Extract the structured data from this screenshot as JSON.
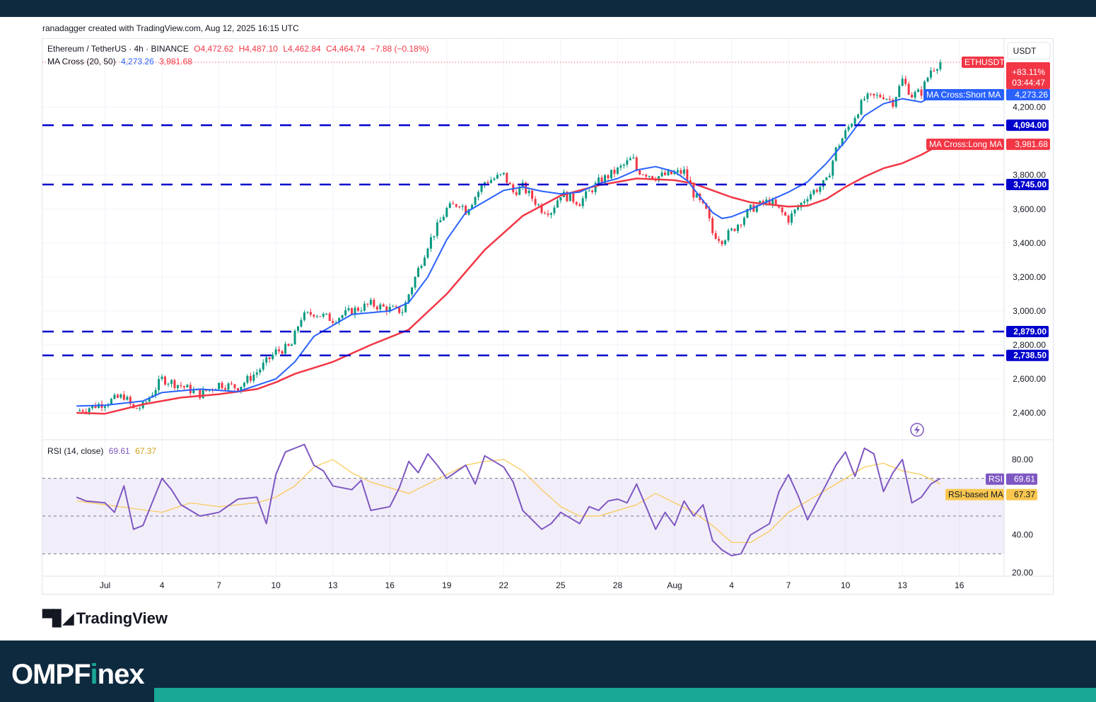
{
  "header": {
    "credit": "ranadagger created with TradingView.com, Aug 12, 2025 16:15 UTC"
  },
  "legend": {
    "symbol": "Ethereum / TetherUS · 4h · BINANCE",
    "open": "O4,472.62",
    "high": "H4,487.10",
    "low": "L4,462.84",
    "close": "C4,464.74",
    "change": "−7.88 (−0.18%)",
    "ma_title": "MA Cross (20, 50)",
    "ma_short_val": "4,273.26",
    "ma_long_val": "3,981.68",
    "rsi_title": "RSI (14, close)",
    "rsi_val": "69.61",
    "rsi_ma_val": "67.37"
  },
  "axis": {
    "currency": "USDT"
  },
  "labels": {
    "ethusdt": "ETHUSDT",
    "pct": "+83.11%",
    "countdown": "03:44:47",
    "short_ma_name": "MA Cross:Short MA",
    "short_ma_val": "4,273.26",
    "long_ma_name": "MA Cross:Long MA",
    "long_ma_val": "3,981.68",
    "rsi_name": "RSI",
    "rsi_val": "69.61",
    "rsi_ma_name": "RSI-based MA",
    "rsi_ma_val": "67.37"
  },
  "branding": {
    "tradingview": "TradingView",
    "omp_a": "OMPF",
    "omp_b": "i",
    "omp_c": "nex"
  },
  "chart_data": {
    "type": "line",
    "title": "Ethereum / TetherUS · 4h · BINANCE",
    "price_axis": {
      "ticks": [
        "4,200.00",
        "3,800.00",
        "3,600.00",
        "3,400.00",
        "3,200.00",
        "3,000.00",
        "2,800.00",
        "2,600.00",
        "2,400.00"
      ],
      "ylim": [
        2330,
        4560
      ]
    },
    "x_ticks": [
      "Jul",
      "4",
      "7",
      "10",
      "13",
      "16",
      "19",
      "22",
      "25",
      "28",
      "Aug",
      "4",
      "7",
      "10",
      "13",
      "16"
    ],
    "levels": [
      {
        "value": 4094.0,
        "label": "4,094.00"
      },
      {
        "value": 3745.0,
        "label": "3,745.00"
      },
      {
        "value": 2879.0,
        "label": "2,879.00"
      },
      {
        "value": 2738.5,
        "label": "2,738.50"
      }
    ],
    "colors": {
      "short_ma": "#2962ff",
      "long_ma": "#f23645",
      "level": "#0000cc",
      "rsi": "#7e57c2",
      "rsi_ma": "#f9c74f",
      "candle_up": "#089981",
      "candle_down": "#f23645"
    },
    "price_series": {
      "days": [
        -1.5,
        0,
        1,
        1.5,
        2,
        3,
        3.5,
        4,
        5,
        6,
        7,
        8,
        9,
        9.8,
        10.3,
        11,
        12,
        13,
        14,
        15,
        15.7,
        16,
        17,
        18,
        18.7,
        19,
        20,
        21,
        21.5,
        22,
        23,
        23.5,
        24,
        25,
        26,
        27,
        27.8,
        28,
        29,
        30,
        30.5,
        31,
        31.7,
        32,
        32.5,
        33,
        34,
        35,
        36,
        37,
        38,
        38.5,
        39,
        40,
        41,
        41.5,
        42,
        42.5,
        43,
        43.5,
        44
      ],
      "close": [
        2410,
        2460,
        2500,
        2420,
        2440,
        2600,
        2580,
        2560,
        2510,
        2570,
        2550,
        2640,
        2760,
        2790,
        2960,
        2990,
        2950,
        3000,
        3040,
        3010,
        3000,
        3100,
        3390,
        3600,
        3640,
        3590,
        3760,
        3800,
        3700,
        3730,
        3600,
        3590,
        3690,
        3640,
        3760,
        3830,
        3900,
        3830,
        3790,
        3810,
        3820,
        3690,
        3580,
        3460,
        3420,
        3470,
        3600,
        3650,
        3540,
        3680,
        3760,
        3950,
        4050,
        4250,
        4270,
        4230,
        4360,
        4270,
        4290,
        4420,
        4465
      ]
    },
    "short_ma": {
      "days": [
        -1.5,
        0,
        2,
        3,
        5,
        7,
        9,
        10,
        11,
        13,
        15,
        16,
        17,
        18,
        19,
        21,
        22,
        23,
        24,
        25,
        26,
        27,
        28,
        29,
        30,
        30.7,
        31,
        32,
        32.5,
        33,
        34,
        35,
        36,
        37,
        38,
        39,
        40,
        41,
        42,
        43,
        44
      ],
      "values": [
        2440,
        2445,
        2470,
        2520,
        2540,
        2525,
        2600,
        2700,
        2850,
        2980,
        3000,
        3050,
        3200,
        3420,
        3580,
        3710,
        3730,
        3705,
        3690,
        3700,
        3750,
        3780,
        3830,
        3850,
        3820,
        3765,
        3720,
        3580,
        3545,
        3555,
        3600,
        3650,
        3700,
        3760,
        3870,
        4000,
        4150,
        4220,
        4250,
        4230,
        4290
      ]
    },
    "long_ma": {
      "days": [
        -1.5,
        0,
        2,
        4,
        6,
        8,
        9,
        10,
        12,
        14,
        16,
        18,
        20,
        22,
        24,
        26,
        28,
        30,
        31,
        32,
        33,
        34,
        36,
        37,
        38,
        39,
        40,
        41,
        42,
        43,
        44
      ],
      "values": [
        2400,
        2395,
        2450,
        2490,
        2510,
        2540,
        2580,
        2630,
        2700,
        2800,
        2890,
        3100,
        3360,
        3560,
        3680,
        3740,
        3780,
        3770,
        3750,
        3710,
        3670,
        3640,
        3615,
        3620,
        3660,
        3730,
        3790,
        3840,
        3870,
        3920,
        3980
      ]
    },
    "rsi_axis": {
      "ticks": [
        "80.00",
        "40.00",
        "20.00"
      ],
      "ylim": [
        17,
        93
      ],
      "bands": [
        70,
        50,
        30
      ]
    },
    "rsi": {
      "days": [
        -1.5,
        -1,
        0,
        0.5,
        1,
        1.5,
        2,
        3,
        3.5,
        4,
        5,
        6,
        7,
        8,
        8.5,
        9,
        9.5,
        10,
        10.5,
        11,
        11.5,
        12,
        13,
        13.5,
        14,
        15,
        15.5,
        16,
        16.5,
        17,
        17.5,
        18,
        19,
        19.5,
        20,
        21,
        21.5,
        22,
        23,
        23.5,
        24,
        25,
        25.5,
        26,
        26.5,
        27,
        27.5,
        28,
        29,
        29.5,
        30,
        30.5,
        31,
        31.5,
        32,
        32.5,
        33,
        33.5,
        34,
        34.5,
        35,
        35.5,
        36,
        36.5,
        37,
        38,
        38.5,
        39,
        39.5,
        40,
        40.5,
        41,
        41.5,
        42,
        42.5,
        43,
        43.5,
        44
      ],
      "values": [
        60,
        58,
        57,
        52,
        66,
        43,
        45,
        70,
        64,
        56,
        50,
        52,
        59,
        60,
        46,
        72,
        84,
        86,
        88,
        77,
        74,
        66,
        64,
        69,
        53,
        55,
        65,
        79,
        73,
        83,
        77,
        70,
        77,
        67,
        82,
        76,
        68,
        53,
        43,
        46,
        52,
        46,
        55,
        53,
        58,
        59,
        57,
        67,
        43,
        52,
        45,
        58,
        50,
        56,
        37,
        32,
        29,
        30,
        40,
        43,
        46,
        63,
        72,
        61,
        48,
        67,
        77,
        84,
        71,
        86,
        83,
        63,
        73,
        80,
        57,
        60,
        67,
        70
      ]
    },
    "rsi_ma": {
      "days": [
        -1.5,
        0,
        1.5,
        3,
        4.5,
        6,
        8,
        9,
        10,
        11,
        12,
        13,
        14,
        15,
        16,
        17,
        18,
        19,
        20,
        21,
        22,
        23,
        24,
        25,
        26,
        27,
        28,
        29,
        30,
        31,
        32,
        33,
        34,
        35,
        36,
        37,
        38,
        39,
        40,
        41,
        42,
        43,
        44
      ],
      "values": [
        58,
        56,
        54,
        52,
        57,
        55,
        57,
        60,
        66,
        76,
        80,
        73,
        68,
        65,
        62,
        67,
        72,
        77,
        79,
        80,
        74,
        64,
        55,
        50,
        50,
        53,
        56,
        62,
        57,
        52,
        45,
        36,
        36,
        42,
        52,
        58,
        64,
        70,
        76,
        78,
        74,
        72,
        67
      ]
    }
  }
}
